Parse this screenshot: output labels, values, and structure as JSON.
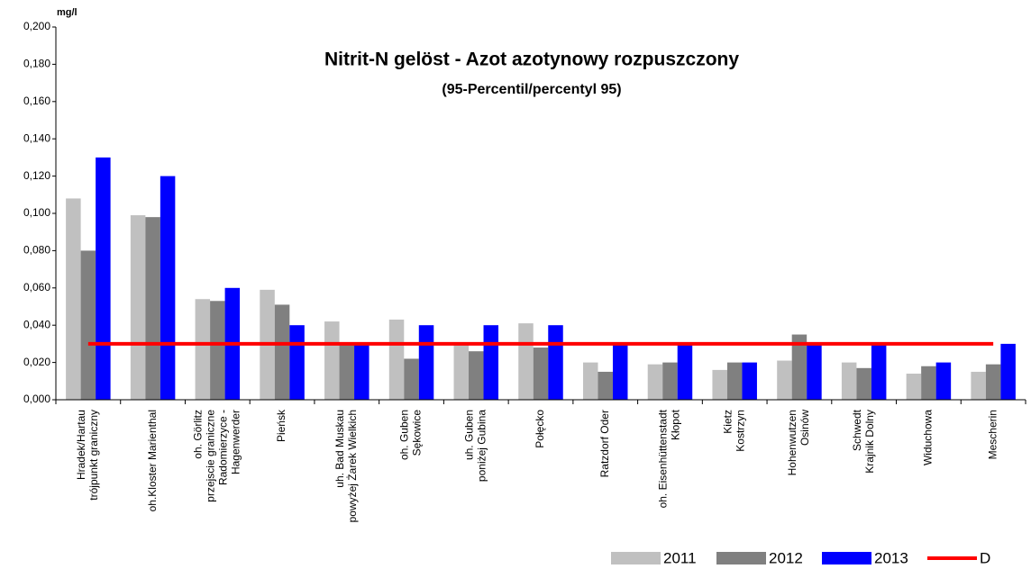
{
  "chart_data": {
    "type": "bar",
    "title": "Nitrit-N gelöst - Azot azotynowy rozpuszczony",
    "subtitle": "(95-Percentil/percentyl 95)",
    "y_unit": "mg/l",
    "categories": [
      [
        "Hradek/Hartau",
        "trójpunkt graniczny"
      ],
      [
        "oh.Kloster Marienthal"
      ],
      [
        "oh. Görlitz",
        "przejscie graniczne",
        "Radomierzyce -",
        "Hagenwerder"
      ],
      [
        "Pieńsk"
      ],
      [
        "uh. Bad Muskau",
        "powyżej Żarek Wielkich"
      ],
      [
        "oh. Guben",
        "Sękowice"
      ],
      [
        "uh. Guben",
        "poniżej Gubina"
      ],
      [
        "Połęcko"
      ],
      [
        "Ratzdorf Oder"
      ],
      [
        "oh. Eisenhüttenstadt",
        "Kłopot"
      ],
      [
        "Kietz",
        "Kostrzyn"
      ],
      [
        "Hohenwutzen",
        "Osinów"
      ],
      [
        "Schwedt",
        "Krajnik Dolny"
      ],
      [
        "Widuchowa"
      ],
      [
        "Mescherin"
      ]
    ],
    "series": [
      {
        "name": "2011",
        "color": "#c0c0c0",
        "values": [
          0.108,
          0.099,
          0.054,
          0.059,
          0.042,
          0.043,
          0.03,
          0.041,
          0.02,
          0.019,
          0.016,
          0.021,
          0.02,
          0.014,
          0.015
        ]
      },
      {
        "name": "2012",
        "color": "#808080",
        "values": [
          0.08,
          0.098,
          0.053,
          0.051,
          0.03,
          0.022,
          0.026,
          0.028,
          0.015,
          0.02,
          0.02,
          0.035,
          0.017,
          0.018,
          0.019
        ]
      },
      {
        "name": "2013",
        "color": "#0000ff",
        "values": [
          0.13,
          0.12,
          0.06,
          0.04,
          0.03,
          0.04,
          0.04,
          0.04,
          0.03,
          0.03,
          0.02,
          0.03,
          0.03,
          0.02,
          0.03
        ]
      },
      {
        "name": "D",
        "color": "#ff0000",
        "type": "line",
        "values": [
          0.03,
          0.03,
          0.03,
          0.03,
          0.03,
          0.03,
          0.03,
          0.03,
          0.03,
          0.03,
          0.03,
          0.03,
          0.03,
          0.03,
          0.03
        ]
      }
    ],
    "ylim": [
      0,
      0.2
    ],
    "yticks": [
      {
        "value": 0,
        "label": "0,000"
      },
      {
        "value": 0.02,
        "label": "0,020"
      },
      {
        "value": 0.04,
        "label": "0,040"
      },
      {
        "value": 0.06,
        "label": "0,060"
      },
      {
        "value": 0.08,
        "label": "0,080"
      },
      {
        "value": 0.1,
        "label": "0,100"
      },
      {
        "value": 0.12,
        "label": "0,120"
      },
      {
        "value": 0.14,
        "label": "0,140"
      },
      {
        "value": 0.16,
        "label": "0,160"
      },
      {
        "value": 0.18,
        "label": "0,180"
      },
      {
        "value": 0.2,
        "label": "0,200"
      }
    ],
    "legend": "bottom-right"
  }
}
